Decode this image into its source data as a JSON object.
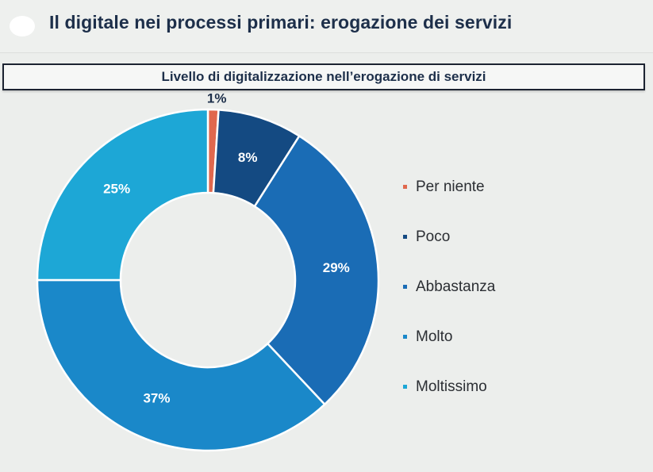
{
  "header": {
    "title": "Il digitale nei processi primari: erogazione dei servizi"
  },
  "chart_data": {
    "type": "pie",
    "variant": "donut",
    "title": "Livello di digitalizzazione nell’erogazione di servizi",
    "legend_position": "right",
    "slices": [
      {
        "name": "Per niente",
        "value": 1,
        "label": "1%",
        "color": "#e0684e"
      },
      {
        "name": "Poco",
        "value": 8,
        "label": "8%",
        "color": "#144a82"
      },
      {
        "name": "Abbastanza",
        "value": 29,
        "label": "29%",
        "color": "#1a6cb5"
      },
      {
        "name": "Molto",
        "value": 37,
        "label": "37%",
        "color": "#1a88c9"
      },
      {
        "name": "Moltissimo",
        "value": 25,
        "label": "25%",
        "color": "#1da7d6"
      }
    ]
  }
}
